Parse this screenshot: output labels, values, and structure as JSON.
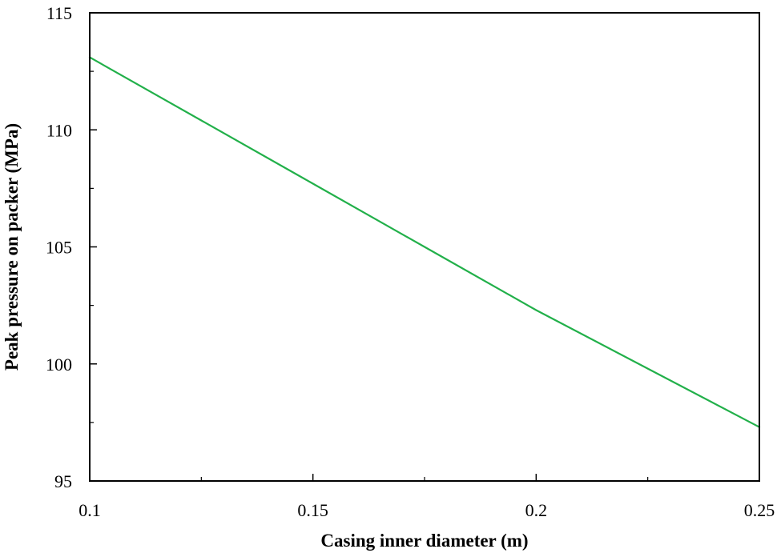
{
  "chart_data": {
    "type": "line",
    "title": "",
    "xlabel": "Casing inner diameter (m)",
    "ylabel": "Peak pressure on packer (MPa)",
    "xlim": [
      0.1,
      0.25
    ],
    "ylim": [
      95,
      115
    ],
    "x_ticks": [
      0.1,
      0.15,
      0.2,
      0.25
    ],
    "x_tick_labels": [
      "0.1",
      "0.15",
      "0.2",
      "0.25"
    ],
    "x_minor_ticks": [
      0.125,
      0.175,
      0.225
    ],
    "y_ticks": [
      95,
      100,
      105,
      110,
      115
    ],
    "y_tick_labels": [
      "95",
      "100",
      "105",
      "110",
      "115"
    ],
    "y_minor_ticks": [
      97.5,
      102.5,
      107.5,
      112.5
    ],
    "grid": false,
    "legend": "none",
    "series": [
      {
        "color": "#22b04a",
        "x": [
          0.1,
          0.125,
          0.15,
          0.175,
          0.2,
          0.225,
          0.25
        ],
        "y": [
          113.1,
          110.4,
          107.7,
          105.0,
          102.3,
          99.8,
          97.3
        ]
      }
    ]
  }
}
